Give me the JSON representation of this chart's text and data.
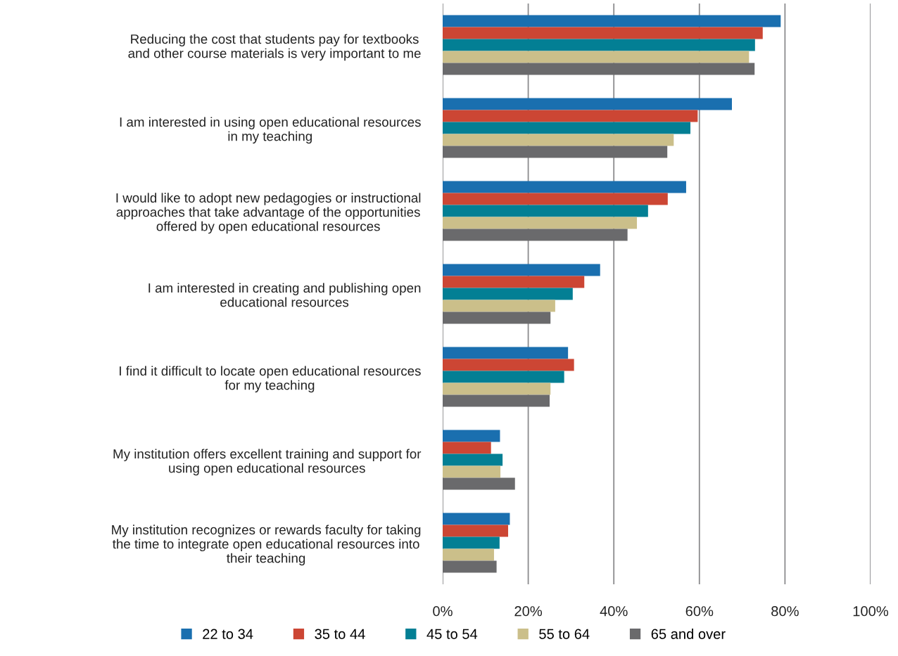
{
  "chart_data": {
    "type": "bar",
    "orientation": "horizontal",
    "categories": [
      "Reducing the cost that students pay for textbooks\nand other course materials is very important to me",
      "I am interested in using open educational resources\nin my teaching",
      "I would like to adopt new pedagogies or instructional\napproaches that take advantage of the opportunities\noffered by open educational resources",
      "I am interested in creating and publishing open\neducational resources",
      "I find it difficult to locate open educational resources\nfor my teaching",
      "My institution offers excellent training and support for\nusing open educational resources",
      "My institution recognizes or rewards faculty for taking\nthe time to integrate open educational resources into\ntheir teaching"
    ],
    "series": [
      {
        "name": "22 to 34",
        "color": "#1a6faf",
        "values": [
          79,
          67.6,
          56.9,
          36.8,
          29.3,
          13.4,
          15.7
        ]
      },
      {
        "name": "35 to 44",
        "color": "#cc4634",
        "values": [
          74.8,
          59.6,
          52.6,
          33.1,
          30.7,
          11.3,
          15.3
        ]
      },
      {
        "name": "45 to 54",
        "color": "#037f94",
        "values": [
          73,
          57.9,
          48,
          30.4,
          28.4,
          14,
          13.3
        ]
      },
      {
        "name": "55 to 64",
        "color": "#cbbf8a",
        "values": [
          71.6,
          54,
          45.4,
          26.3,
          25.2,
          13.5,
          12
        ]
      },
      {
        "name": "65 and over",
        "color": "#6a6a6c",
        "values": [
          72.9,
          52.5,
          43.2,
          25.2,
          25,
          16.9,
          12.6
        ]
      }
    ],
    "xlim": [
      0,
      100
    ],
    "xticks": [
      {
        "value": 0,
        "label": "0%"
      },
      {
        "value": 20,
        "label": "20%"
      },
      {
        "value": 40,
        "label": "40%"
      },
      {
        "value": 60,
        "label": "60%"
      },
      {
        "value": 80,
        "label": "80%"
      },
      {
        "value": 100,
        "label": "100%"
      }
    ],
    "grid": "x",
    "legend": "bottom",
    "marker": "square"
  }
}
